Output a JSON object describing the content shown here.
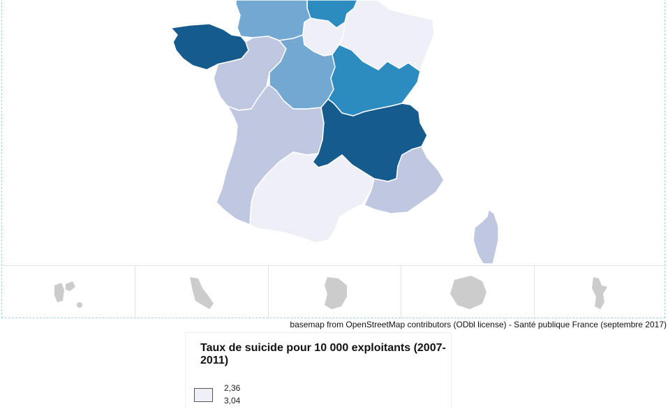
{
  "map": {
    "source_credit": "basemap from OpenStreetMap contributors (ODbl license) - Santé publique France (septembre 2017)",
    "colors": {
      "class_1": "#efeff7",
      "class_2": "#bfc8e0",
      "class_3": "#72a8d1",
      "class_4": "#2c8bbf",
      "class_5": "#155b8e",
      "overseas": "#cccccc",
      "borders": "#ffffff"
    },
    "regions": [
      {
        "name": "Bretagne",
        "class": 5
      },
      {
        "name": "Normandie",
        "class": 3
      },
      {
        "name": "Hauts-de-France",
        "class": 4
      },
      {
        "name": "Île-de-France",
        "class": 1
      },
      {
        "name": "Grand Est",
        "class": 1
      },
      {
        "name": "Pays de la Loire",
        "class": 2
      },
      {
        "name": "Centre-Val de Loire",
        "class": 3
      },
      {
        "name": "Bourgogne-Franche-Comté",
        "class": 4
      },
      {
        "name": "Nouvelle-Aquitaine",
        "class": 2
      },
      {
        "name": "Auvergne-Rhône-Alpes",
        "class": 5
      },
      {
        "name": "Occitanie",
        "class": 1
      },
      {
        "name": "Provence-Alpes-Côte d'Azur",
        "class": 2
      },
      {
        "name": "Corse",
        "class": 2
      }
    ],
    "overseas": [
      "Guadeloupe",
      "Martinique",
      "Guyane",
      "La Réunion",
      "Mayotte"
    ]
  },
  "legend": {
    "title": "Taux de suicide pour 10 000 exploitants (2007-2011)",
    "entries": [
      "2,36",
      "3,04"
    ]
  }
}
